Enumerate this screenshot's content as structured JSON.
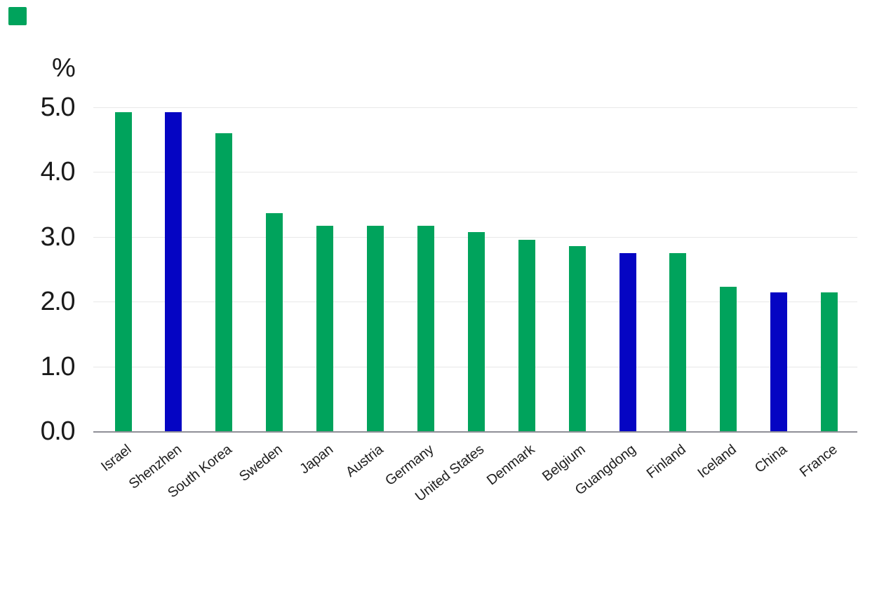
{
  "brand": {
    "logo_color": "#00A35C"
  },
  "chart_data": {
    "type": "bar",
    "title": "",
    "unit_label": "%",
    "xlabel": "",
    "ylabel": "%",
    "ylim": [
      0.0,
      5.0
    ],
    "ytick_labels": [
      "0.0",
      "1.0",
      "2.0",
      "3.0",
      "4.0",
      "5.0"
    ],
    "grid": "horizontal-light",
    "legend": "none",
    "categories": [
      "Israel",
      "Shenzhen",
      "South Korea",
      "Sweden",
      "Japan",
      "Austria",
      "Germany",
      "United States",
      "Denmark",
      "Belgium",
      "Guangdong",
      "Finland",
      "Iceland",
      "China",
      "France"
    ],
    "values": [
      4.92,
      4.92,
      4.6,
      3.37,
      3.17,
      3.17,
      3.17,
      3.07,
      2.96,
      2.86,
      2.75,
      2.75,
      2.23,
      2.14,
      2.14
    ],
    "highlighted": [
      false,
      true,
      false,
      false,
      false,
      false,
      false,
      false,
      false,
      false,
      true,
      false,
      false,
      true,
      false
    ],
    "bar_color": "#00A35C",
    "highlight_color": "#0505C3",
    "gridline_color": "#e8e8e8",
    "axis_line_color": "#8f8f97",
    "text_color": "#1a1a1a"
  }
}
